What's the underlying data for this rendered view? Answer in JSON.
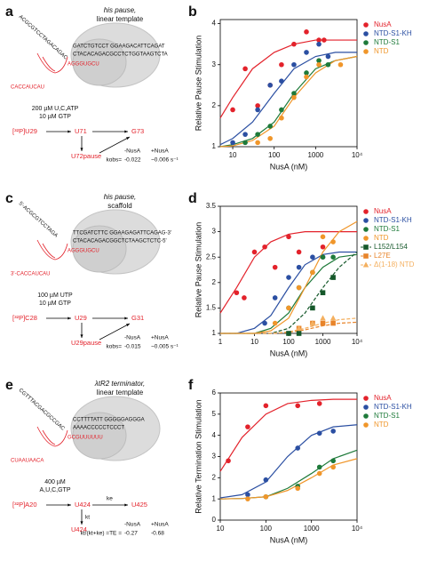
{
  "diagrams": [
    {
      "panel": "a",
      "title": "his pause,",
      "subtitle": "linear template",
      "tail": "ACGCGTCCTAGACAGAC",
      "nt": "GATCTGTCCT   GGAAGACATTCAGAT",
      "t": "CTACACAGACGCCTCTGGTAAGTCTA",
      "rna": "CACCAUCAU",
      "hairpin": "AGGGUGCU",
      "conditions": [
        "200 µM U,C,ATP",
        "10 µM GTP"
      ],
      "start": "[³²P]U29",
      "mid": "U71",
      "final": "G73",
      "pause": "U72pause",
      "minus": "-NusA",
      "plus": "+NusA",
      "rate_label": "kobs=",
      "minus_value": "-0.022",
      "plus_value": "~0.006 s⁻¹"
    },
    {
      "panel": "c",
      "title": "his pause,",
      "subtitle": "scaffold",
      "tail": "5'-ACGCGTCCTAGA",
      "nt": "TTCGATCTTC   GGAAGAGATTCAGAG-3'",
      "t": "CTACACAGACGGCTCTAAGCTCTC-5'",
      "rna": "3'-CACCAUCAU",
      "hairpin": "AGGGUGCU",
      "conditions": [
        "100 µM UTP",
        "10 µM GTP"
      ],
      "start": "[³²P]C28",
      "mid": "U29",
      "final": "G31",
      "pause": "U29pause",
      "minus": "-NusA",
      "plus": "+NusA",
      "rate_label": "kobs=",
      "minus_value": "-0.015",
      "plus_value": "~0.005 s⁻¹"
    },
    {
      "panel": "e",
      "title": "λtR2 terminator,",
      "subtitle": "linear template",
      "tail": "CGTTTACGACGCCGAC",
      "nt": "CCTTTTATT   GGGGGAGGGA",
      "t": "AAAACCCCCTCCCT",
      "rna": "CUAAUAACA",
      "hairpin": "GCGUUUUUU",
      "conditions": [
        "400 µM",
        "A,U,C,GTP"
      ],
      "start": "[³²P]A20",
      "mid": "U424",
      "final": "U425",
      "pause": "U424",
      "ke": "ke",
      "kt": "kt",
      "minus": "-NusA",
      "plus": "+NusA",
      "rate_label": "kt/(kt+ke) =TE =",
      "minus_value": "-0.27",
      "plus_value": "-0.68"
    }
  ],
  "chart_data": [
    {
      "type": "scatter",
      "panel": "b",
      "xscale": "log",
      "xlabel": "NusA (nM)",
      "ylabel": "Relative Pause Stimulation",
      "legend": "right",
      "xlim": [
        5,
        10000
      ],
      "xticks": [
        10,
        100,
        1000,
        {
          "value": 10000,
          "label": "10⁴"
        }
      ],
      "ylim": [
        1,
        4.1
      ],
      "yticks": [
        1,
        2,
        3,
        4
      ],
      "fit_x": [
        5,
        10,
        30,
        100,
        300,
        1000,
        3000,
        10000
      ],
      "series": [
        {
          "name": "NusA",
          "color": "#e3222b",
          "x": [
            10,
            20,
            40,
            80,
            150,
            300,
            600,
            1200,
            1600
          ],
          "values": [
            1.9,
            2.9,
            2.0,
            2.5,
            3.0,
            3.5,
            3.8,
            3.6,
            3.6
          ],
          "fit_values": [
            1.7,
            2.2,
            2.9,
            3.3,
            3.5,
            3.6,
            3.6,
            3.6
          ]
        },
        {
          "name": "NTD-S1-KH",
          "color": "#2b4fa2",
          "x": [
            10,
            20,
            40,
            80,
            150,
            300,
            600,
            1200,
            2000
          ],
          "values": [
            1.1,
            1.3,
            1.9,
            2.5,
            2.6,
            3.0,
            3.3,
            3.5,
            3.2
          ],
          "fit_values": [
            1.05,
            1.2,
            1.6,
            2.3,
            2.9,
            3.2,
            3.3,
            3.3
          ]
        },
        {
          "name": "NTD-S1",
          "color": "#1e7a3a",
          "x": [
            20,
            40,
            80,
            150,
            300,
            600,
            1200,
            2000
          ],
          "values": [
            1.1,
            1.3,
            1.5,
            1.9,
            2.3,
            2.8,
            3.1,
            3.0
          ],
          "fit_values": [
            1.0,
            1.05,
            1.2,
            1.6,
            2.3,
            2.9,
            3.1,
            3.2
          ]
        },
        {
          "name": "NTD",
          "color": "#f0962a",
          "x": [
            40,
            80,
            150,
            300,
            600,
            1200,
            4000
          ],
          "values": [
            1.1,
            1.2,
            1.7,
            2.2,
            2.7,
            3.0,
            3.0
          ],
          "fit_values": [
            1.0,
            1.02,
            1.15,
            1.5,
            2.2,
            2.8,
            3.1,
            3.2
          ]
        }
      ]
    },
    {
      "type": "scatter",
      "panel": "d",
      "xscale": "log",
      "xlabel": "NusA (nM)",
      "ylabel": "Relative Pause Stimulation",
      "legend": "right",
      "xlim": [
        1,
        10000
      ],
      "xticks": [
        1,
        10,
        100,
        1000,
        {
          "value": 10000,
          "label": "10⁴"
        }
      ],
      "ylim": [
        1,
        3.5
      ],
      "yticks": [
        1,
        1.5,
        2,
        2.5,
        3,
        3.5
      ],
      "fit_x": [
        1,
        3,
        10,
        30,
        100,
        300,
        1000,
        3000,
        10000
      ],
      "series": [
        {
          "name": "NusA",
          "color": "#e3222b",
          "x": [
            3,
            5,
            10,
            20,
            40,
            100,
            200,
            1000
          ],
          "values": [
            1.8,
            1.7,
            2.6,
            2.7,
            2.3,
            2.9,
            2.6,
            2.7
          ],
          "fit_values": [
            1.4,
            1.9,
            2.5,
            2.8,
            2.95,
            3.0,
            3.0,
            3.0,
            3.0
          ]
        },
        {
          "name": "NTD-S1-KH",
          "color": "#2b4fa2",
          "x": [
            20,
            40,
            100,
            200,
            500,
            1000
          ],
          "values": [
            1.2,
            1.7,
            2.1,
            2.3,
            2.5,
            2.5
          ],
          "fit_values": [
            1.0,
            1.0,
            1.1,
            1.35,
            1.9,
            2.35,
            2.55,
            2.6,
            2.6
          ]
        },
        {
          "name": "NTD-S1",
          "color": "#1e7a3a",
          "x": [
            100,
            200,
            500,
            1000,
            2000
          ],
          "values": [
            1.5,
            1.9,
            2.2,
            2.5,
            2.5
          ],
          "fit_values": [
            1.0,
            1.0,
            1.0,
            1.1,
            1.4,
            1.9,
            2.3,
            2.5,
            2.55
          ]
        },
        {
          "name": "NTD",
          "color": "#f0962a",
          "x": [
            40,
            100,
            200,
            500,
            1000,
            2000
          ],
          "values": [
            1.2,
            1.5,
            1.9,
            2.2,
            2.9,
            2.8
          ],
          "fit_values": [
            1.0,
            1.0,
            1.0,
            1.05,
            1.3,
            1.9,
            2.6,
            3.0,
            3.2
          ]
        },
        {
          "name": "L152/L154",
          "color": "#15582a",
          "marker": "square",
          "dashed": true,
          "x": [
            100,
            200,
            500,
            1000,
            2000
          ],
          "values": [
            1.0,
            1.0,
            1.5,
            1.8,
            2.1
          ],
          "fit_values": [
            1.0,
            1.0,
            1.0,
            1.0,
            1.1,
            1.4,
            1.9,
            2.3,
            2.6
          ]
        },
        {
          "name": "L27E",
          "color": "#e8842a",
          "marker": "square",
          "dashed": true,
          "x": [
            200,
            500,
            1000,
            2000
          ],
          "values": [
            1.1,
            1.2,
            1.2,
            1.2
          ],
          "fit_values": [
            1.0,
            1.0,
            1.0,
            1.0,
            1.02,
            1.07,
            1.15,
            1.2,
            1.22
          ]
        },
        {
          "name": "Δ(1-18) NTD",
          "color": "#f4b060",
          "marker": "triangle",
          "dashed": true,
          "x": [
            200,
            500,
            1000,
            2000
          ],
          "values": [
            1.1,
            1.2,
            1.3,
            1.3
          ],
          "fit_values": [
            1.0,
            1.0,
            1.0,
            1.0,
            1.03,
            1.1,
            1.2,
            1.27,
            1.3
          ]
        }
      ]
    },
    {
      "type": "scatter",
      "panel": "f",
      "xscale": "log",
      "xlabel": "NusA (nM)",
      "ylabel": "Relative Termination Stimulation",
      "legend": "right",
      "xlim": [
        10,
        10000
      ],
      "xticks": [
        10,
        100,
        1000,
        {
          "value": 10000,
          "label": "10⁴"
        }
      ],
      "ylim": [
        0,
        6
      ],
      "yticks": [
        0,
        1,
        2,
        3,
        4,
        5,
        6
      ],
      "fit_x": [
        10,
        30,
        100,
        300,
        1000,
        3000,
        10000
      ],
      "series": [
        {
          "name": "NusA",
          "color": "#e3222b",
          "x": [
            15,
            40,
            100,
            500,
            1500
          ],
          "values": [
            2.8,
            4.4,
            5.4,
            5.4,
            5.5
          ],
          "fit_values": [
            2.3,
            3.9,
            5.0,
            5.5,
            5.65,
            5.7,
            5.7
          ]
        },
        {
          "name": "NTD-S1-KH",
          "color": "#2b4fa2",
          "x": [
            40,
            100,
            500,
            1500,
            3000
          ],
          "values": [
            1.2,
            1.9,
            3.4,
            4.1,
            4.2
          ],
          "fit_values": [
            1.05,
            1.2,
            1.8,
            3.0,
            4.0,
            4.4,
            4.5
          ]
        },
        {
          "name": "NTD-S1",
          "color": "#1e7a3a",
          "x": [
            100,
            500,
            1500,
            3000
          ],
          "values": [
            1.1,
            1.6,
            2.5,
            2.8
          ],
          "fit_values": [
            1.0,
            1.02,
            1.1,
            1.5,
            2.2,
            2.9,
            3.3
          ]
        },
        {
          "name": "NTD",
          "color": "#f0962a",
          "x": [
            40,
            100,
            500,
            1500,
            3000
          ],
          "values": [
            1.0,
            1.1,
            1.5,
            2.2,
            2.5
          ],
          "fit_values": [
            1.0,
            1.02,
            1.1,
            1.4,
            2.0,
            2.6,
            2.9
          ]
        }
      ]
    }
  ]
}
